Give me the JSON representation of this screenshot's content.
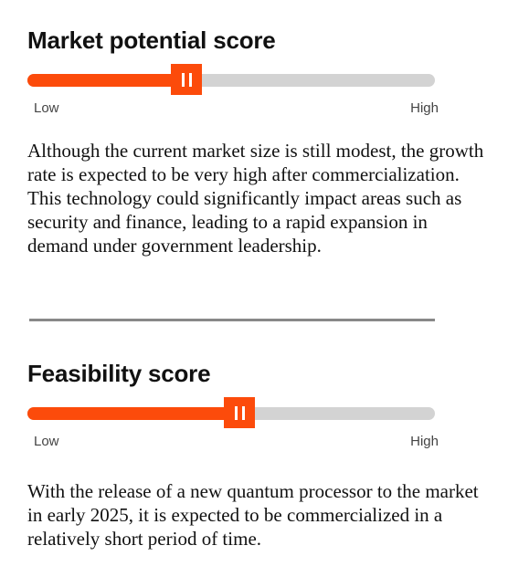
{
  "market_potential": {
    "title": "Market potential score",
    "score_fraction": 0.39,
    "low_label": "Low",
    "high_label": "High",
    "description": "Although the current market size is still modest, the growth rate is expected to be very high after commercialization. This technology could significantly impact areas such as security and finance, leading to a rapid expansion in demand under government leadership."
  },
  "feasibility": {
    "title": "Feasibility score",
    "score_fraction": 0.52,
    "low_label": "Low",
    "high_label": "High",
    "description": "With the release of a new quantum processor to the market in early 2025, it is expected to be commercialized in a relatively short period of time."
  },
  "colors": {
    "accent": "#fc4b0b",
    "track": "#d3d3d3",
    "divider": "#888888"
  }
}
